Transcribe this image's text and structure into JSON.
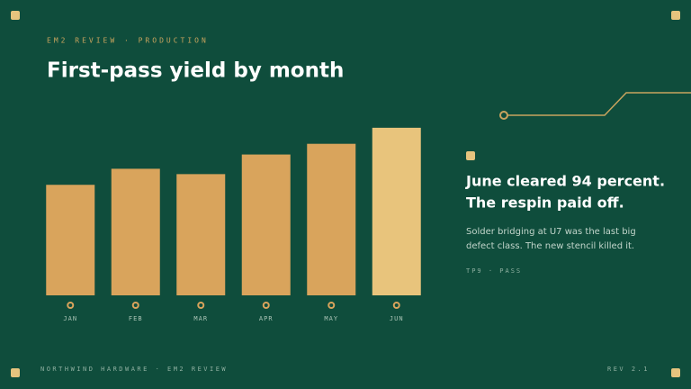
{
  "header": {
    "kicker": "EM2 REVIEW · PRODUCTION"
  },
  "chart_data": {
    "type": "bar",
    "title": "First-pass yield by month",
    "categories": [
      "JAN",
      "FEB",
      "MAR",
      "APR",
      "MAY",
      "JUN"
    ],
    "values": [
      62,
      71,
      68,
      79,
      85,
      94
    ],
    "colors": [
      "#d9a45c",
      "#d9a45c",
      "#d9a45c",
      "#d9a45c",
      "#d9a45c",
      "#e8c47c"
    ],
    "ylim": [
      0,
      100
    ]
  },
  "callout": {
    "headline": [
      "June cleared 94 percent.",
      "The respin paid off."
    ],
    "body": [
      "Solder bridging at U7 was the last big",
      "defect class. The new stencil killed it."
    ],
    "tag": "TP9 · PASS"
  },
  "footer": {
    "left": "NORTHWIND HARDWARE · EM2 REVIEW",
    "right": "REV 2.1"
  }
}
